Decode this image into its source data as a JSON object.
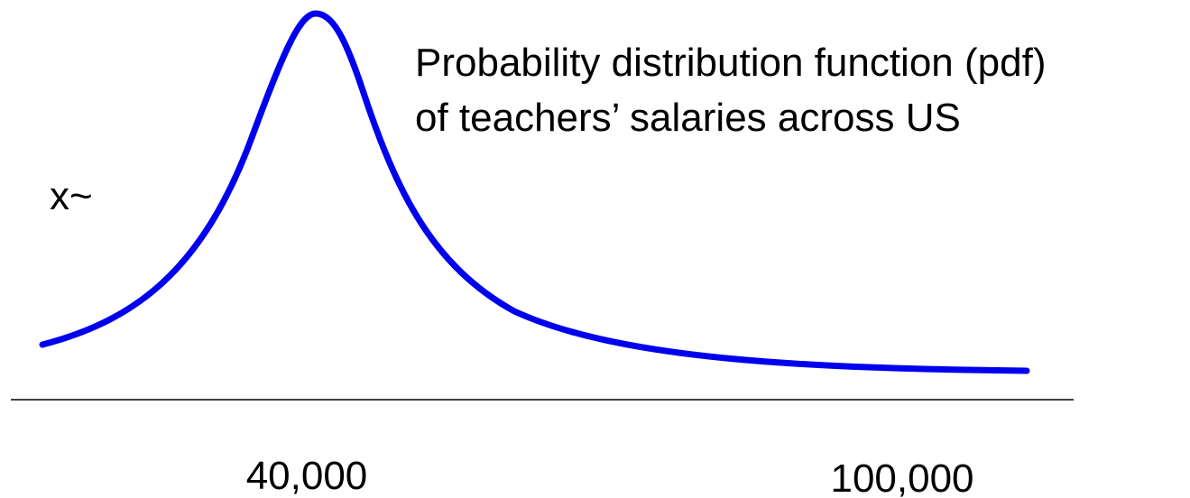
{
  "annotation": {
    "lines": [
      "Probability distribution function (pdf)",
      "of teachers’ salaries across US"
    ]
  },
  "variable_label": "x~",
  "axis_labels": [
    "40,000",
    "100,000"
  ]
}
